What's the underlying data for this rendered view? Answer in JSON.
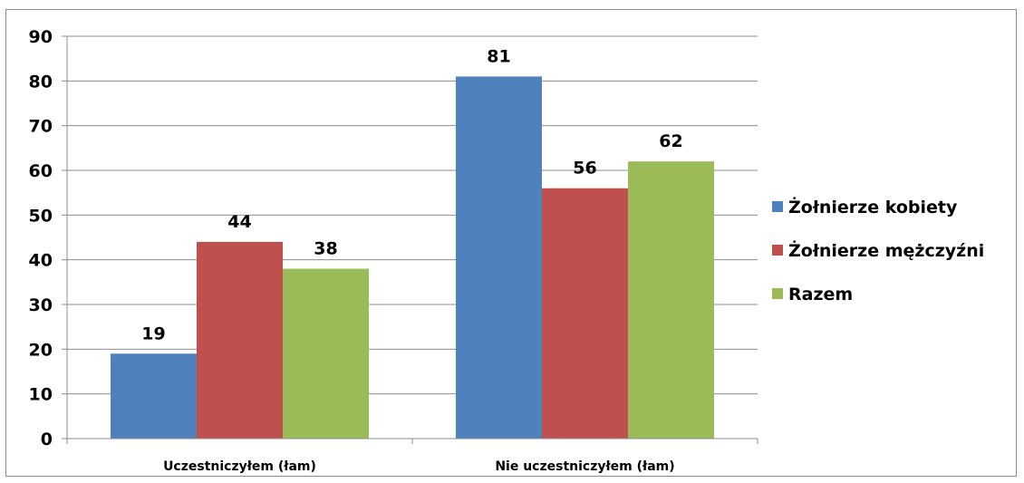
{
  "chart_data": {
    "type": "bar",
    "categories": [
      "Uczestniczyłem (łam)",
      "Nie uczestniczyłem (łam)"
    ],
    "series": [
      {
        "name": "Żołnierze kobiety",
        "values": [
          19,
          81
        ],
        "color": "#4f81bd"
      },
      {
        "name": "Żołnierze mężczyźni",
        "values": [
          44,
          56
        ],
        "color": "#c0504d"
      },
      {
        "name": "Razem",
        "values": [
          38,
          62
        ],
        "color": "#9bbb59"
      }
    ],
    "ylim": [
      0,
      90
    ],
    "yticks": [
      0,
      10,
      20,
      30,
      40,
      50,
      60,
      70,
      80,
      90
    ],
    "grid": true,
    "legend": "right",
    "title": "",
    "xlabel": "",
    "ylabel": ""
  }
}
